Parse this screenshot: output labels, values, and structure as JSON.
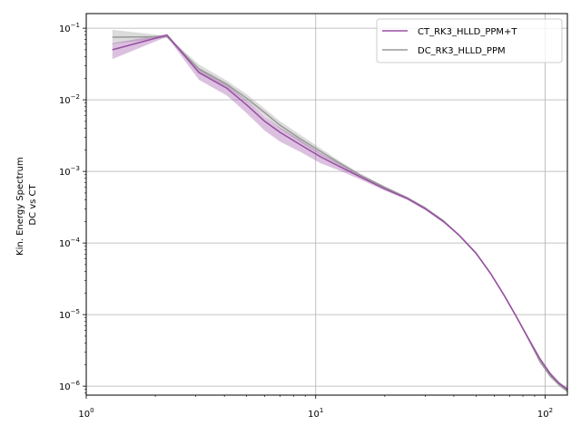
{
  "chart_data": {
    "type": "line",
    "title": "",
    "ylabel_lines": [
      "Kin. Energy Spectrum",
      "DC vs CT"
    ],
    "xlabel": "",
    "xscale": "log",
    "yscale": "log",
    "xlim": [
      1,
      125
    ],
    "ylim": [
      7.5e-07,
      0.16
    ],
    "grid": true,
    "legend_position": "top-right",
    "x_ticks": [
      {
        "value": 1,
        "base": "10",
        "exp": "0"
      },
      {
        "value": 10,
        "base": "10",
        "exp": "1"
      },
      {
        "value": 100,
        "base": "10",
        "exp": "2"
      }
    ],
    "y_ticks": [
      {
        "value": 1e-06,
        "base": "10",
        "exp": "−6"
      },
      {
        "value": 1e-05,
        "base": "10",
        "exp": "−5"
      },
      {
        "value": 0.0001,
        "base": "10",
        "exp": "−4"
      },
      {
        "value": 0.001,
        "base": "10",
        "exp": "−3"
      },
      {
        "value": 0.01,
        "base": "10",
        "exp": "−2"
      },
      {
        "value": 0.1,
        "base": "10",
        "exp": "−1"
      }
    ],
    "x": [
      1.3,
      2.25,
      3.1,
      4.1,
      5.0,
      6.0,
      7.0,
      8.5,
      10.5,
      12.5,
      15.5,
      20.0,
      25.0,
      30.0,
      36.0,
      42.0,
      50.0,
      58.0,
      66.0,
      75.0,
      85.0,
      95.0,
      105.0,
      115.0,
      125.0
    ],
    "series": [
      {
        "name": "CT_RK3_HLLD_PPM+T",
        "color": "#984ea3",
        "values": [
          0.05,
          0.08,
          0.024,
          0.0145,
          0.0085,
          0.005,
          0.0035,
          0.0024,
          0.0016,
          0.0012,
          0.00085,
          0.00057,
          0.00042,
          0.0003,
          0.0002,
          0.00013,
          7.2e-05,
          3.7e-05,
          1.9e-05,
          9.3e-06,
          4.5e-06,
          2.4e-06,
          1.5e-06,
          1.1e-06,
          9e-07
        ],
        "lower": [
          0.037,
          0.076,
          0.019,
          0.0115,
          0.0065,
          0.0037,
          0.0026,
          0.0019,
          0.0013,
          0.00105,
          0.00078,
          0.00054,
          0.0004,
          0.00029,
          0.000193,
          0.000126,
          6.9e-05,
          3.55e-05,
          1.82e-05,
          8.9e-06,
          4.3e-06,
          2.3e-06,
          1.4e-06,
          1.05e-06,
          8.5e-07
        ],
        "upper": [
          0.062,
          0.083,
          0.027,
          0.0165,
          0.0098,
          0.0058,
          0.0041,
          0.0028,
          0.0018,
          0.00133,
          0.00092,
          0.0006,
          0.00044,
          0.00031,
          0.000207,
          0.000134,
          7.5e-05,
          3.85e-05,
          1.98e-05,
          9.7e-06,
          4.7e-06,
          2.5e-06,
          1.6e-06,
          1.15e-06,
          9.5e-07
        ]
      },
      {
        "name": "DC_RK3_HLLD_PPM",
        "color": "#999999",
        "values": [
          0.075,
          0.076,
          0.027,
          0.0165,
          0.0105,
          0.0066,
          0.0044,
          0.0029,
          0.0019,
          0.00135,
          0.0009,
          0.0006,
          0.00043,
          0.00031,
          0.000205,
          0.00013,
          7.2e-05,
          3.7e-05,
          1.9e-05,
          9.3e-06,
          4.4e-06,
          2.2e-06,
          1.4e-06,
          1.05e-06,
          8.5e-07
        ],
        "lower": [
          0.06,
          0.074,
          0.024,
          0.015,
          0.0094,
          0.0059,
          0.0039,
          0.0026,
          0.0017,
          0.00125,
          0.00086,
          0.00058,
          0.00042,
          0.000302,
          0.0002,
          0.000127,
          7e-05,
          3.6e-05,
          1.85e-05,
          9.1e-06,
          4.3e-06,
          2.1e-06,
          1.33e-06,
          1e-06,
          8.1e-07
        ],
        "upper": [
          0.095,
          0.078,
          0.031,
          0.0185,
          0.012,
          0.0075,
          0.005,
          0.0033,
          0.0021,
          0.00145,
          0.00095,
          0.00062,
          0.00044,
          0.000318,
          0.00021,
          0.000133,
          7.4e-05,
          3.8e-05,
          1.95e-05,
          9.5e-06,
          4.5e-06,
          2.3e-06,
          1.47e-06,
          1.1e-06,
          8.9e-07
        ]
      }
    ]
  }
}
